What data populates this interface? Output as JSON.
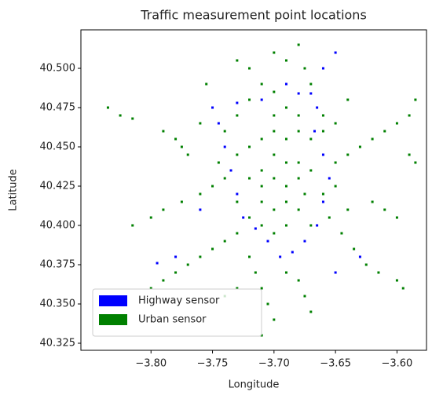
{
  "chart_data": {
    "type": "scatter",
    "title": "Traffic measurement point locations",
    "x_label": "Longitude",
    "y_label": "Latitude",
    "xlim": [
      -3.857,
      -3.576
    ],
    "ylim": [
      40.3205,
      40.5245
    ],
    "xticks": [
      {
        "value": -3.8,
        "label": "−3.80"
      },
      {
        "value": -3.75,
        "label": "−3.75"
      },
      {
        "value": -3.7,
        "label": "−3.70"
      },
      {
        "value": -3.65,
        "label": "−3.65"
      },
      {
        "value": -3.6,
        "label": "−3.60"
      }
    ],
    "yticks": [
      {
        "value": 40.325,
        "label": "40.325"
      },
      {
        "value": 40.35,
        "label": "40.350"
      },
      {
        "value": 40.375,
        "label": "40.375"
      },
      {
        "value": 40.4,
        "label": "40.400"
      },
      {
        "value": 40.425,
        "label": "40.425"
      },
      {
        "value": 40.45,
        "label": "40.450"
      },
      {
        "value": 40.475,
        "label": "40.475"
      },
      {
        "value": 40.5,
        "label": "40.500"
      }
    ],
    "legend": "lower left",
    "series": [
      {
        "name": "Highway sensor",
        "color": "#0000ff",
        "x": [
          -3.69,
          -3.68,
          -3.67,
          -3.665,
          -3.667,
          -3.66,
          -3.655,
          -3.66,
          -3.665,
          -3.675,
          -3.685,
          -3.695,
          -3.705,
          -3.715,
          -3.725,
          -3.73,
          -3.735,
          -3.74,
          -3.745,
          -3.75,
          -3.73,
          -3.71,
          -3.78,
          -3.795,
          -3.76,
          -3.66,
          -3.65,
          -3.63,
          -3.65
        ],
        "y": [
          40.49,
          40.484,
          40.484,
          40.475,
          40.46,
          40.445,
          40.43,
          40.415,
          40.4,
          40.39,
          40.383,
          40.38,
          40.39,
          40.398,
          40.405,
          40.42,
          40.435,
          40.45,
          40.465,
          40.475,
          40.478,
          40.48,
          40.38,
          40.376,
          40.41,
          40.5,
          40.51,
          40.38,
          40.37
        ]
      },
      {
        "name": "Urban sensor",
        "color": "#008000",
        "x": [
          -3.835,
          -3.825,
          -3.815,
          -3.79,
          -3.78,
          -3.775,
          -3.77,
          -3.755,
          -3.73,
          -3.72,
          -3.7,
          -3.69,
          -3.68,
          -3.675,
          -3.71,
          -3.7,
          -3.72,
          -3.73,
          -3.69,
          -3.68,
          -3.66,
          -3.7,
          -3.71,
          -3.69,
          -3.68,
          -3.67,
          -3.72,
          -3.73,
          -3.7,
          -3.69,
          -3.68,
          -3.71,
          -3.72,
          -3.7,
          -3.69,
          -3.68,
          -3.67,
          -3.65,
          -3.64,
          -3.63,
          -3.62,
          -3.61,
          -3.6,
          -3.59,
          -3.585,
          -3.59,
          -3.585,
          -3.74,
          -3.75,
          -3.76,
          -3.775,
          -3.79,
          -3.8,
          -3.815,
          -3.71,
          -3.7,
          -3.69,
          -3.68,
          -3.72,
          -3.73,
          -3.71,
          -3.7,
          -3.69,
          -3.67,
          -3.655,
          -3.64,
          -3.62,
          -3.61,
          -3.6,
          -3.645,
          -3.635,
          -3.625,
          -3.615,
          -3.6,
          -3.595,
          -3.74,
          -3.75,
          -3.76,
          -3.77,
          -3.78,
          -3.79,
          -3.8,
          -3.72,
          -3.715,
          -3.71,
          -3.705,
          -3.7,
          -3.71,
          -3.69,
          -3.68,
          -3.675,
          -3.67,
          -3.73,
          -3.74,
          -3.66,
          -3.65,
          -3.66,
          -3.65,
          -3.64,
          -3.67,
          -3.73,
          -3.745,
          -3.74,
          -3.76,
          -3.7,
          -3.71,
          -3.675
        ],
        "y": [
          40.475,
          40.47,
          40.468,
          40.46,
          40.455,
          40.45,
          40.445,
          40.49,
          40.505,
          40.5,
          40.51,
          40.505,
          40.515,
          40.5,
          40.49,
          40.485,
          40.48,
          40.47,
          40.475,
          40.47,
          40.47,
          40.46,
          40.455,
          40.455,
          40.46,
          40.455,
          40.45,
          40.445,
          40.445,
          40.44,
          40.44,
          40.435,
          40.43,
          40.43,
          40.425,
          40.43,
          40.435,
          40.44,
          40.445,
          40.45,
          40.455,
          40.46,
          40.465,
          40.47,
          40.48,
          40.445,
          40.44,
          40.43,
          40.425,
          40.42,
          40.415,
          40.41,
          40.405,
          40.4,
          40.415,
          40.41,
          40.415,
          40.41,
          40.405,
          40.395,
          40.4,
          40.395,
          40.4,
          40.4,
          40.405,
          40.41,
          40.415,
          40.41,
          40.405,
          40.395,
          40.385,
          40.375,
          40.37,
          40.365,
          40.36,
          40.39,
          40.385,
          40.38,
          40.375,
          40.37,
          40.365,
          40.36,
          40.38,
          40.37,
          40.36,
          40.35,
          40.34,
          40.33,
          40.37,
          40.365,
          40.355,
          40.345,
          40.36,
          40.355,
          40.42,
          40.425,
          40.46,
          40.465,
          40.48,
          40.49,
          40.415,
          40.44,
          40.46,
          40.465,
          40.47,
          40.425,
          40.42
        ]
      }
    ]
  }
}
